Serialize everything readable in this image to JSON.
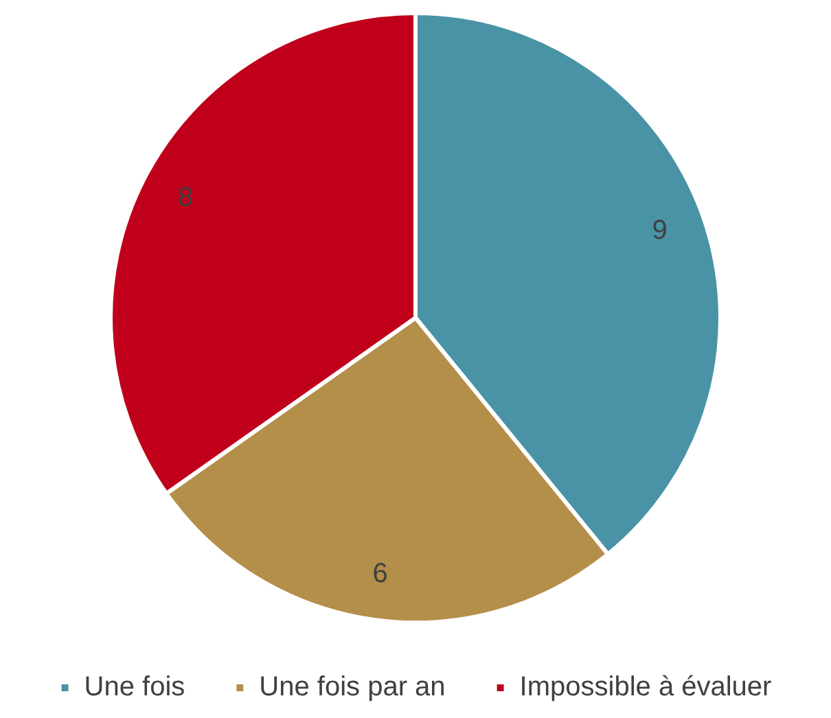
{
  "chart_data": {
    "type": "pie",
    "categories": [
      "Une fois",
      "Une fois par an",
      "Impossible à évaluer"
    ],
    "values": [
      9,
      6,
      8
    ],
    "colors": [
      "#4a93a6",
      "#b38f4a",
      "#c0001a"
    ],
    "data_labels": true,
    "legend": "bottom"
  }
}
